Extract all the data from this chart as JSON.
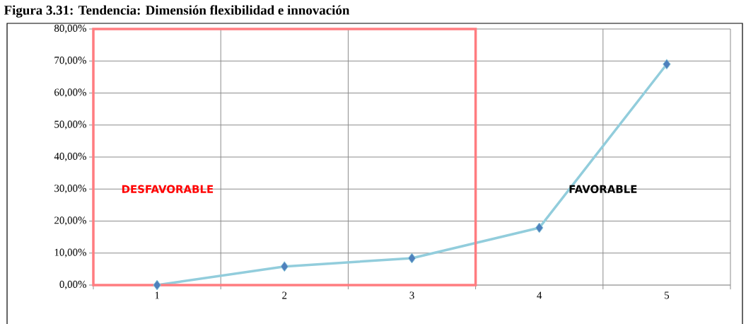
{
  "chart_data": {
    "type": "line",
    "title": "Figura 3.31: Tendencia: Dimensión flexibilidad e innovación",
    "categories": [
      "1",
      "2",
      "3",
      "4",
      "5"
    ],
    "series": [
      {
        "color": "#92cddc",
        "values": [
          0,
          5.8,
          8.4,
          17.9,
          69.0
        ]
      }
    ],
    "ylim": [
      0,
      80
    ],
    "yticks": [
      {
        "value": 0,
        "label": "0,00%"
      },
      {
        "value": 10,
        "label": "10,00%"
      },
      {
        "value": 20,
        "label": "20,00%"
      },
      {
        "value": 30,
        "label": "30,00%"
      },
      {
        "value": 40,
        "label": "40,00%"
      },
      {
        "value": 50,
        "label": "50,00%"
      },
      {
        "value": 60,
        "label": "60,00%"
      },
      {
        "value": 70,
        "label": "70,00%"
      },
      {
        "value": 80,
        "label": "80,00%"
      }
    ],
    "grid": true,
    "marker": "diamond",
    "line_style": "solid",
    "annotations": [
      "DESFAVORABLE",
      "FAVORABLE"
    ]
  }
}
